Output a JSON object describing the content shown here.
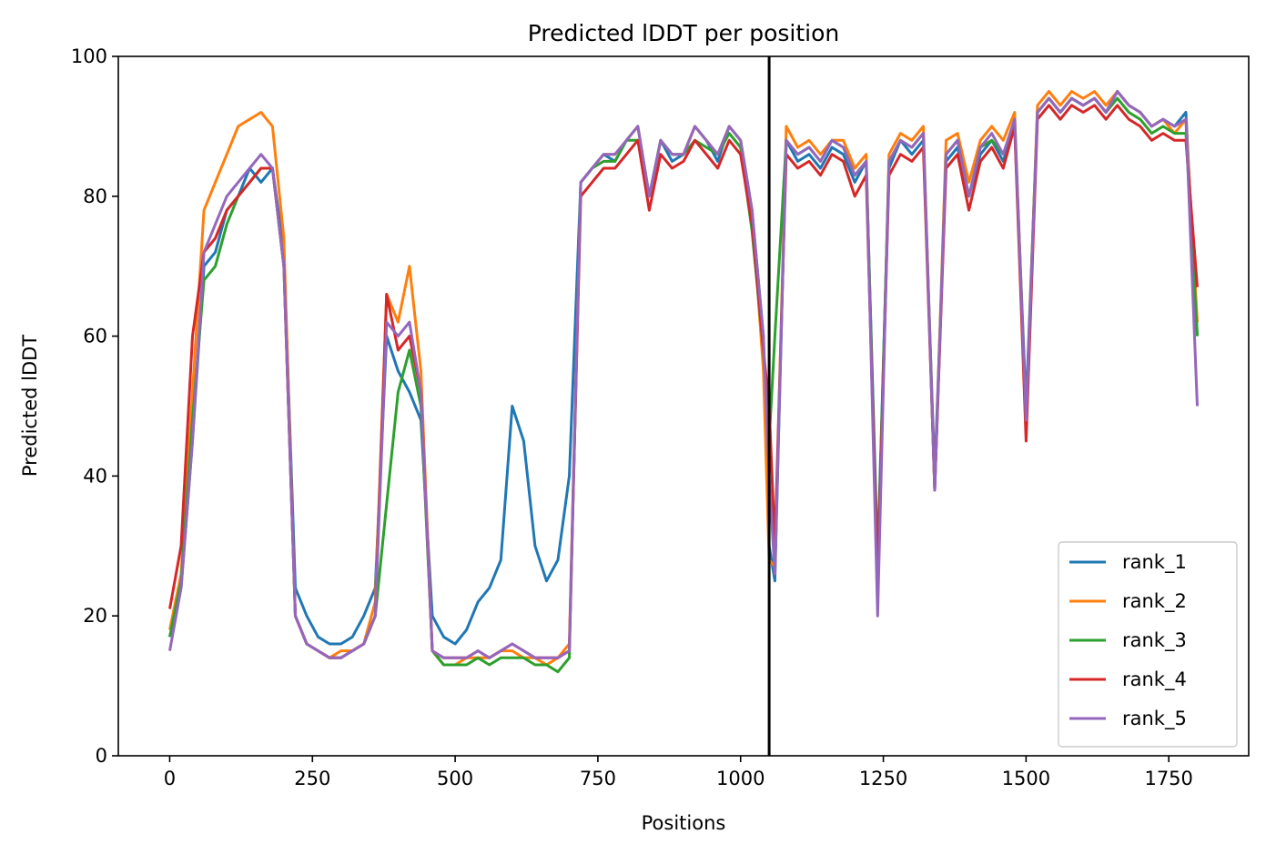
{
  "chart_data": {
    "type": "line",
    "title": "Predicted lDDT per position",
    "xlabel": "Positions",
    "ylabel": "Predicted lDDT",
    "xlim": [
      -90,
      1890
    ],
    "ylim": [
      0,
      100
    ],
    "xticks": [
      0,
      250,
      500,
      750,
      1000,
      1250,
      1500,
      1750
    ],
    "yticks": [
      0,
      20,
      40,
      60,
      80,
      100
    ],
    "grid": false,
    "legend_position": "lower-right",
    "chain_break_line": {
      "x": 1050,
      "color": "#000000"
    },
    "x": [
      0,
      20,
      40,
      60,
      80,
      100,
      120,
      140,
      160,
      180,
      200,
      220,
      240,
      260,
      280,
      300,
      320,
      340,
      360,
      380,
      400,
      420,
      440,
      460,
      480,
      500,
      520,
      540,
      560,
      580,
      600,
      620,
      640,
      660,
      680,
      700,
      720,
      740,
      760,
      780,
      800,
      820,
      840,
      860,
      880,
      900,
      920,
      940,
      960,
      980,
      1000,
      1020,
      1040,
      1050,
      1060,
      1080,
      1100,
      1120,
      1140,
      1160,
      1180,
      1200,
      1220,
      1240,
      1260,
      1280,
      1300,
      1320,
      1340,
      1360,
      1380,
      1400,
      1420,
      1440,
      1460,
      1480,
      1500,
      1520,
      1540,
      1560,
      1580,
      1600,
      1620,
      1640,
      1660,
      1680,
      1700,
      1720,
      1740,
      1760,
      1780,
      1800
    ],
    "series": [
      {
        "name": "rank_1",
        "color": "#1f77b4",
        "values": [
          17,
          24,
          45,
          70,
          72,
          78,
          80,
          84,
          82,
          84,
          72,
          24,
          20,
          17,
          16,
          16,
          17,
          20,
          24,
          60,
          55,
          52,
          48,
          20,
          17,
          16,
          18,
          22,
          24,
          28,
          50,
          45,
          30,
          25,
          28,
          40,
          82,
          84,
          86,
          85,
          88,
          90,
          80,
          88,
          85,
          86,
          90,
          88,
          85,
          90,
          88,
          78,
          60,
          30,
          25,
          88,
          85,
          86,
          84,
          87,
          86,
          82,
          85,
          28,
          84,
          88,
          86,
          88,
          40,
          85,
          87,
          80,
          86,
          88,
          85,
          90,
          50,
          92,
          94,
          92,
          94,
          93,
          94,
          92,
          95,
          93,
          92,
          90,
          91,
          90,
          92,
          60
        ]
      },
      {
        "name": "rank_2",
        "color": "#ff7f0e",
        "values": [
          18,
          26,
          52,
          78,
          82,
          86,
          90,
          91,
          92,
          90,
          74,
          20,
          16,
          15,
          14,
          15,
          15,
          16,
          22,
          66,
          62,
          70,
          55,
          15,
          13,
          13,
          14,
          14,
          14,
          15,
          15,
          14,
          14,
          13,
          14,
          16,
          82,
          84,
          86,
          86,
          88,
          90,
          80,
          88,
          86,
          86,
          90,
          88,
          86,
          90,
          88,
          78,
          55,
          28,
          27,
          90,
          87,
          88,
          86,
          88,
          88,
          84,
          86,
          22,
          86,
          89,
          88,
          90,
          38,
          88,
          89,
          82,
          88,
          90,
          88,
          92,
          48,
          93,
          95,
          93,
          95,
          94,
          95,
          93,
          95,
          93,
          92,
          90,
          91,
          89,
          91,
          62
        ]
      },
      {
        "name": "rank_3",
        "color": "#2ca02c",
        "values": [
          17,
          25,
          48,
          68,
          70,
          76,
          80,
          82,
          84,
          84,
          70,
          20,
          16,
          15,
          14,
          14,
          15,
          16,
          20,
          36,
          52,
          58,
          50,
          15,
          13,
          13,
          13,
          14,
          13,
          14,
          14,
          14,
          13,
          13,
          12,
          14,
          82,
          84,
          85,
          85,
          88,
          88,
          80,
          88,
          86,
          86,
          88,
          87,
          86,
          89,
          87,
          75,
          58,
          45,
          60,
          88,
          86,
          87,
          85,
          88,
          87,
          83,
          85,
          26,
          85,
          88,
          87,
          89,
          38,
          86,
          88,
          80,
          87,
          88,
          86,
          91,
          48,
          92,
          94,
          92,
          94,
          93,
          94,
          92,
          94,
          92,
          91,
          89,
          90,
          89,
          89,
          60
        ]
      },
      {
        "name": "rank_4",
        "color": "#d62728",
        "values": [
          21,
          30,
          60,
          72,
          74,
          78,
          80,
          82,
          84,
          84,
          70,
          20,
          16,
          15,
          14,
          14,
          15,
          16,
          20,
          66,
          58,
          60,
          52,
          15,
          14,
          14,
          14,
          15,
          14,
          15,
          16,
          15,
          14,
          14,
          14,
          15,
          80,
          82,
          84,
          84,
          86,
          88,
          78,
          86,
          84,
          85,
          88,
          86,
          84,
          88,
          86,
          76,
          58,
          50,
          30,
          86,
          84,
          85,
          83,
          86,
          85,
          80,
          83,
          25,
          83,
          86,
          85,
          87,
          38,
          84,
          86,
          78,
          85,
          87,
          84,
          90,
          45,
          91,
          93,
          91,
          93,
          92,
          93,
          91,
          93,
          91,
          90,
          88,
          89,
          88,
          88,
          67
        ]
      },
      {
        "name": "rank_5",
        "color": "#9467bd",
        "values": [
          15,
          24,
          45,
          72,
          76,
          80,
          82,
          84,
          86,
          84,
          70,
          20,
          16,
          15,
          14,
          14,
          15,
          16,
          20,
          62,
          60,
          62,
          52,
          15,
          14,
          14,
          14,
          15,
          14,
          15,
          16,
          15,
          14,
          14,
          14,
          15,
          82,
          84,
          86,
          86,
          88,
          90,
          80,
          88,
          86,
          86,
          90,
          88,
          86,
          90,
          88,
          78,
          60,
          40,
          26,
          88,
          86,
          87,
          85,
          88,
          87,
          83,
          85,
          20,
          85,
          88,
          87,
          89,
          38,
          86,
          88,
          80,
          87,
          89,
          86,
          91,
          48,
          92,
          94,
          92,
          94,
          93,
          94,
          92,
          95,
          93,
          92,
          90,
          91,
          90,
          91,
          50
        ]
      }
    ]
  }
}
